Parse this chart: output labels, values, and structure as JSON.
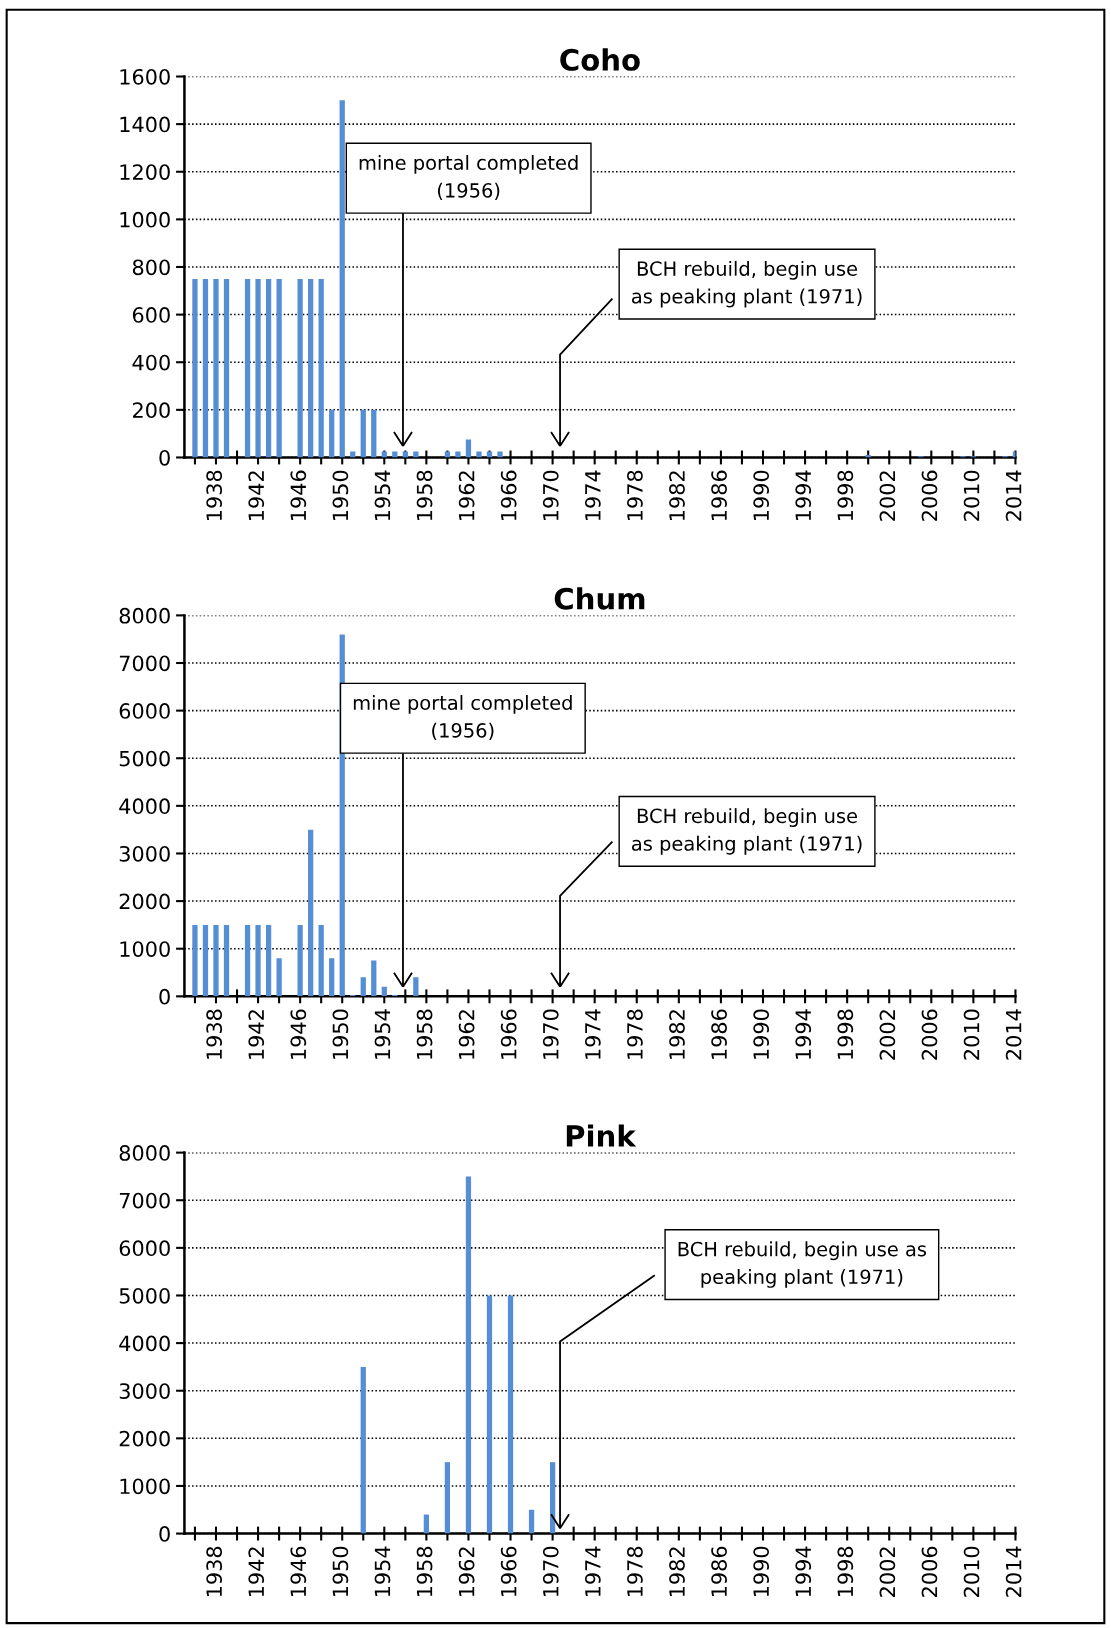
{
  "chart_data": [
    {
      "type": "bar",
      "title": "Coho",
      "color": "#558ed5",
      "grid": "y",
      "x": [
        1936,
        1937,
        1938,
        1939,
        1941,
        1942,
        1943,
        1944,
        1946,
        1947,
        1948,
        1949,
        1950,
        1951,
        1952,
        1953,
        1954,
        1955,
        1956,
        1957,
        1960,
        1961,
        1962,
        1963,
        1964,
        1965,
        2000,
        2005,
        2009,
        2010,
        2013,
        2014
      ],
      "values": [
        750,
        750,
        750,
        750,
        750,
        750,
        750,
        750,
        750,
        750,
        750,
        200,
        1500,
        25,
        200,
        200,
        25,
        25,
        25,
        25,
        25,
        25,
        75,
        25,
        25,
        25,
        10,
        5,
        5,
        5,
        5,
        25
      ],
      "xlim": [
        1935,
        2014
      ],
      "ylim": [
        0,
        1600
      ],
      "yticks": [
        0,
        200,
        400,
        600,
        800,
        1000,
        1200,
        1400,
        1600
      ],
      "xticks": [
        {
          "value": 1936,
          "label": null
        },
        1938,
        {
          "value": 1940,
          "label": null
        },
        1942,
        {
          "value": 1944,
          "label": null
        },
        1946,
        {
          "value": 1948,
          "label": null
        },
        1950,
        {
          "value": 1952,
          "label": null
        },
        1954,
        {
          "value": 1956,
          "label": null
        },
        1958,
        {
          "value": 1960,
          "label": null
        },
        1962,
        {
          "value": 1964,
          "label": null
        },
        1966,
        {
          "value": 1968,
          "label": null
        },
        1970,
        {
          "value": 1972,
          "label": null
        },
        1974,
        {
          "value": 1976,
          "label": null
        },
        1978,
        {
          "value": 1980,
          "label": null
        },
        1982,
        {
          "value": 1984,
          "label": null
        },
        1986,
        {
          "value": 1988,
          "label": null
        },
        1990,
        {
          "value": 1992,
          "label": null
        },
        1994,
        {
          "value": 1996,
          "label": null
        },
        1998,
        {
          "value": 2000,
          "label": null
        },
        2002,
        {
          "value": 2004,
          "label": null
        },
        2006,
        {
          "value": 2008,
          "label": null
        },
        2010,
        {
          "value": 2012,
          "label": null
        },
        2014
      ],
      "annotations": [
        "mine portal completed\n(1956)",
        "BCH rebuild, begin use\nas peaking plant (1971)"
      ]
    },
    {
      "type": "bar",
      "title": "Chum",
      "color": "#558ed5",
      "grid": "y",
      "x": [
        1936,
        1937,
        1938,
        1939,
        1941,
        1942,
        1943,
        1944,
        1946,
        1947,
        1948,
        1949,
        1950,
        1951,
        1952,
        1953,
        1954,
        1955,
        1957
      ],
      "values": [
        1500,
        1500,
        1500,
        1500,
        1500,
        1500,
        1500,
        800,
        1500,
        3500,
        1500,
        800,
        7600,
        30,
        400,
        750,
        200,
        30,
        400
      ],
      "xlim": [
        1935,
        2014
      ],
      "ylim": [
        0,
        8000
      ],
      "yticks": [
        0,
        1000,
        2000,
        3000,
        4000,
        5000,
        6000,
        7000,
        8000
      ],
      "xticks": [
        {
          "value": 1936,
          "label": null
        },
        1938,
        {
          "value": 1940,
          "label": null
        },
        1942,
        {
          "value": 1944,
          "label": null
        },
        1946,
        {
          "value": 1948,
          "label": null
        },
        1950,
        {
          "value": 1952,
          "label": null
        },
        1954,
        {
          "value": 1956,
          "label": null
        },
        1958,
        {
          "value": 1960,
          "label": null
        },
        1962,
        {
          "value": 1964,
          "label": null
        },
        1966,
        {
          "value": 1968,
          "label": null
        },
        1970,
        {
          "value": 1972,
          "label": null
        },
        1974,
        {
          "value": 1976,
          "label": null
        },
        1978,
        {
          "value": 1980,
          "label": null
        },
        1982,
        {
          "value": 1984,
          "label": null
        },
        1986,
        {
          "value": 1988,
          "label": null
        },
        1990,
        {
          "value": 1992,
          "label": null
        },
        1994,
        {
          "value": 1996,
          "label": null
        },
        1998,
        {
          "value": 2000,
          "label": null
        },
        2002,
        {
          "value": 2004,
          "label": null
        },
        2006,
        {
          "value": 2008,
          "label": null
        },
        2010,
        {
          "value": 2012,
          "label": null
        },
        2014
      ],
      "annotations": [
        "mine portal completed\n(1956)",
        "BCH rebuild, begin use\nas peaking plant (1971)"
      ]
    },
    {
      "type": "bar",
      "title": "Pink",
      "color": "#558ed5",
      "grid": "y",
      "x": [
        1952,
        1958,
        1960,
        1962,
        1964,
        1966,
        1968,
        1970
      ],
      "values": [
        3500,
        400,
        1500,
        7500,
        5000,
        5000,
        500,
        1500
      ],
      "xlim": [
        1935,
        2014
      ],
      "ylim": [
        0,
        8000
      ],
      "yticks": [
        0,
        1000,
        2000,
        3000,
        4000,
        5000,
        6000,
        7000,
        8000
      ],
      "xticks": [
        {
          "value": 1936,
          "label": null
        },
        1938,
        {
          "value": 1940,
          "label": null
        },
        1942,
        {
          "value": 1944,
          "label": null
        },
        1946,
        {
          "value": 1948,
          "label": null
        },
        1950,
        {
          "value": 1952,
          "label": null
        },
        1954,
        {
          "value": 1956,
          "label": null
        },
        1958,
        {
          "value": 1960,
          "label": null
        },
        1962,
        {
          "value": 1964,
          "label": null
        },
        1966,
        {
          "value": 1968,
          "label": null
        },
        1970,
        {
          "value": 1972,
          "label": null
        },
        1974,
        {
          "value": 1976,
          "label": null
        },
        1978,
        {
          "value": 1980,
          "label": null
        },
        1982,
        {
          "value": 1984,
          "label": null
        },
        1986,
        {
          "value": 1988,
          "label": null
        },
        1990,
        {
          "value": 1992,
          "label": null
        },
        1994,
        {
          "value": 1996,
          "label": null
        },
        1998,
        {
          "value": 2000,
          "label": null
        },
        2002,
        {
          "value": 2004,
          "label": null
        },
        2006,
        {
          "value": 2008,
          "label": null
        },
        2010,
        {
          "value": 2012,
          "label": null
        },
        2014
      ],
      "annotations": [
        "BCH rebuild, begin use as\npeaking plant (1971)"
      ]
    }
  ]
}
